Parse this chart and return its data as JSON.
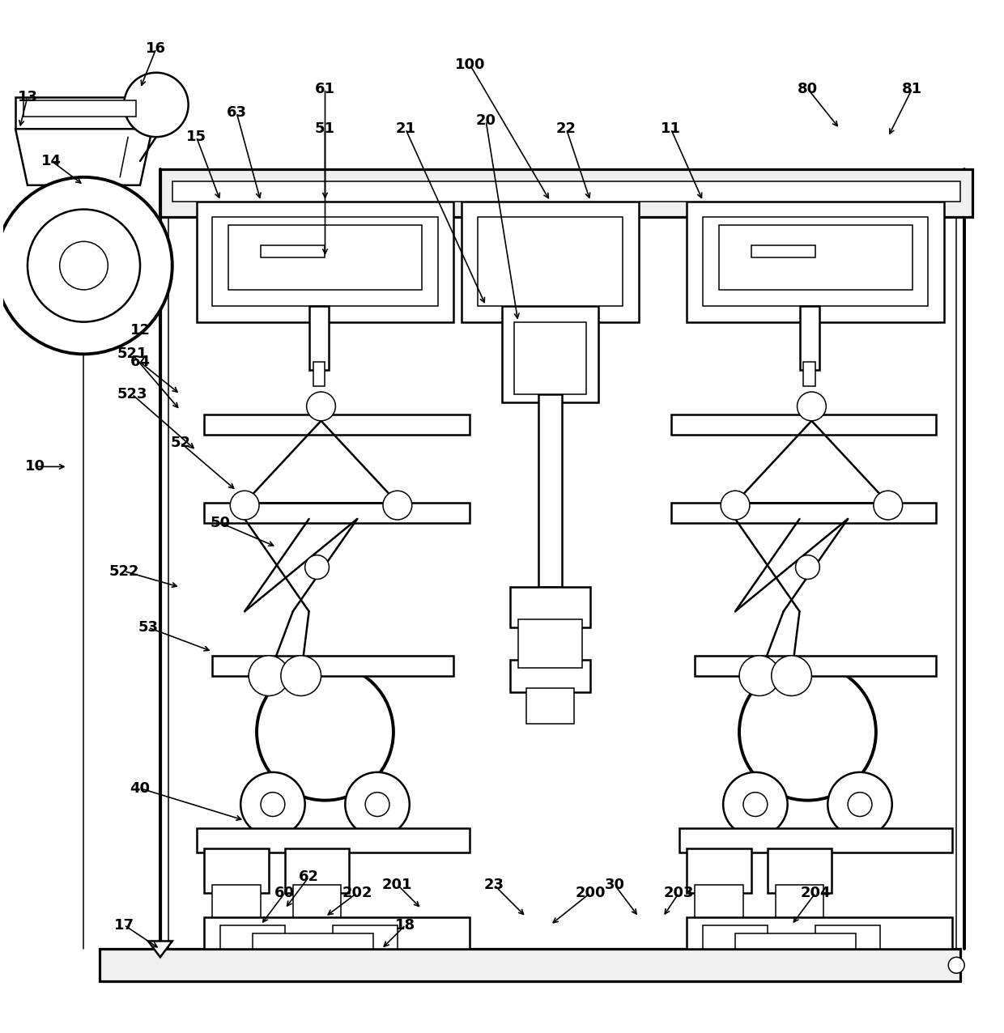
{
  "bg_color": "#ffffff",
  "line_color": "#000000",
  "fig_width": 12.4,
  "fig_height": 12.76,
  "lw": 1.8,
  "lw2": 1.1
}
